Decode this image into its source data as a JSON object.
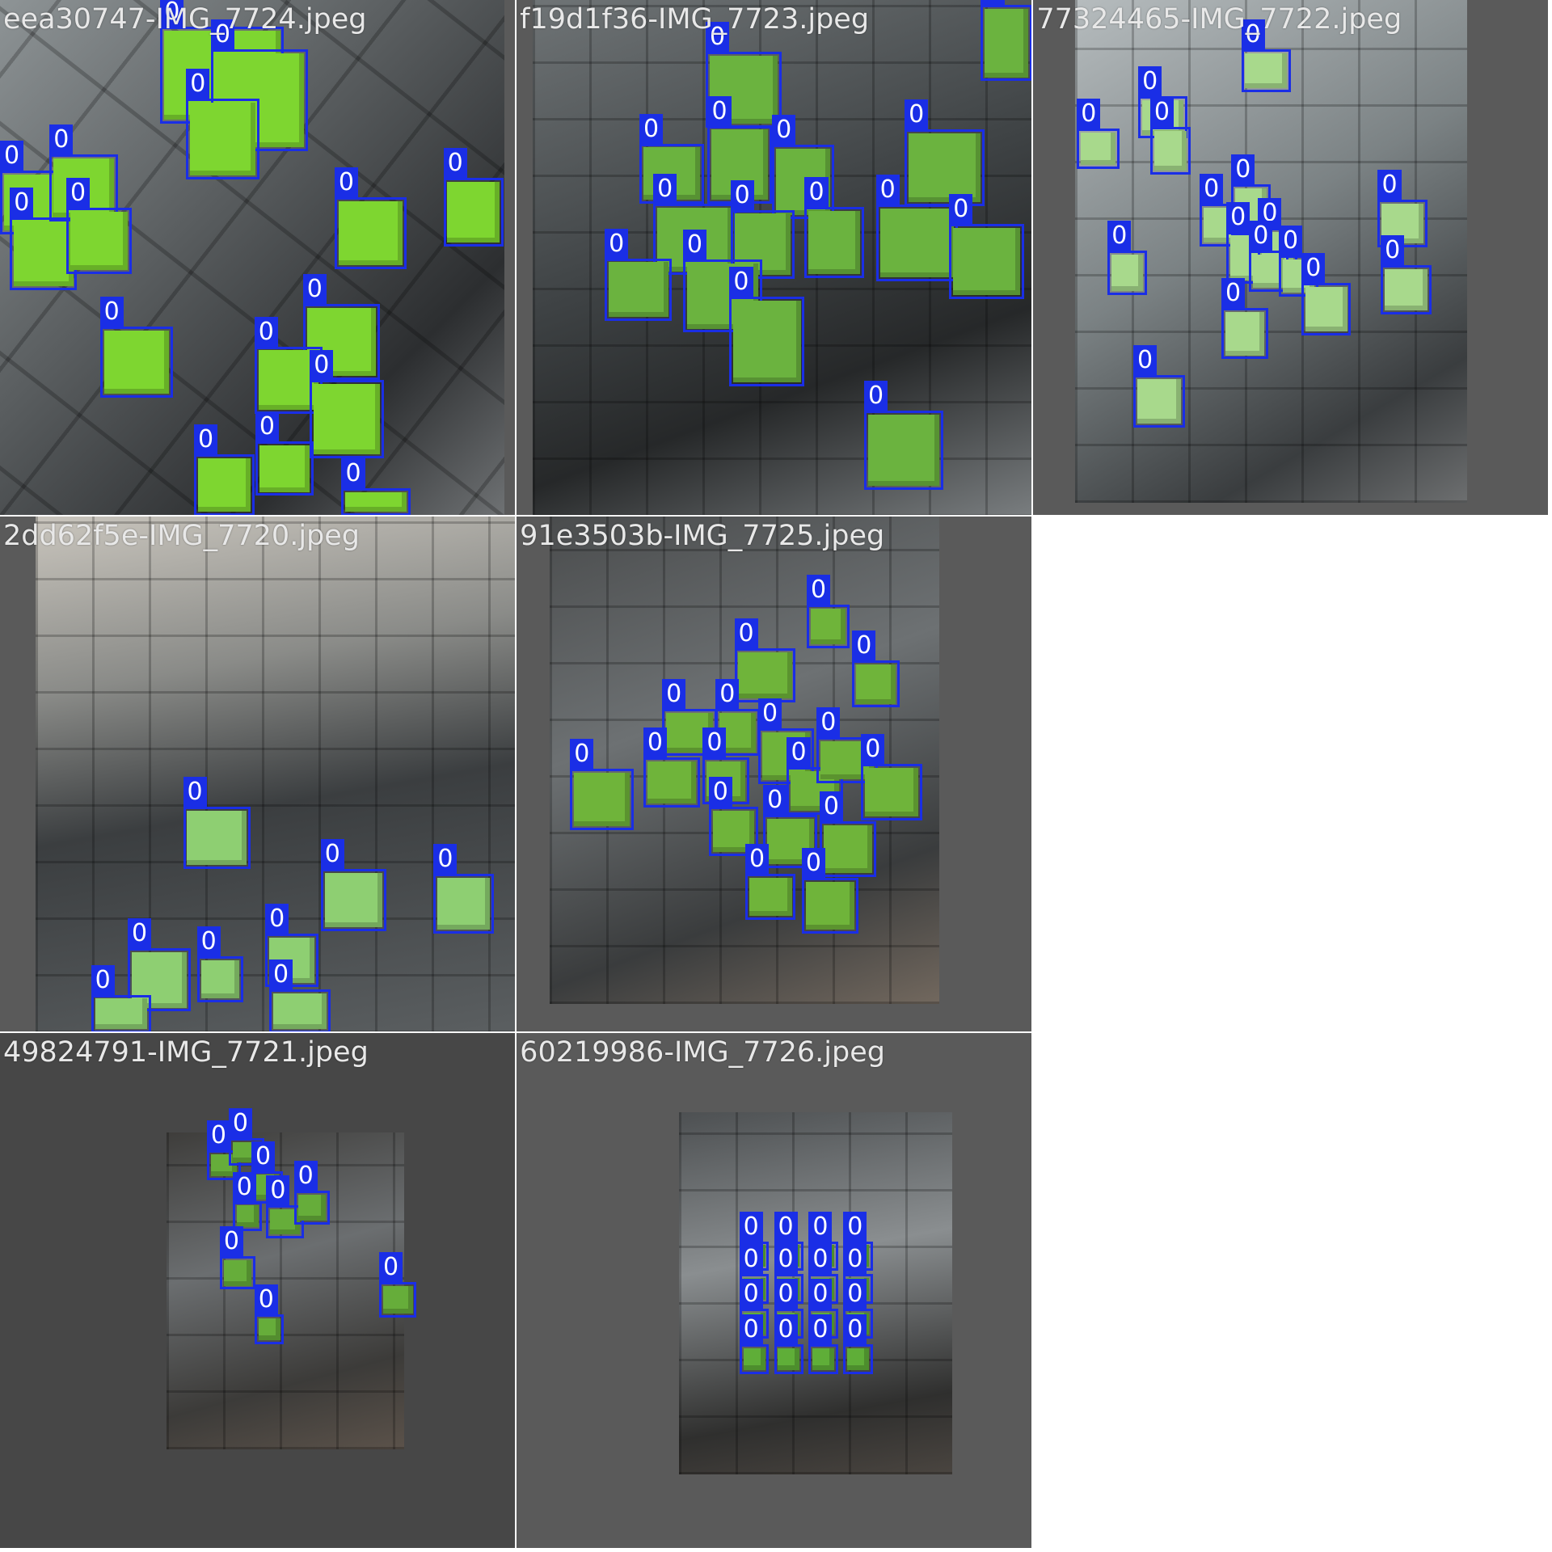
{
  "grid": {
    "tiles": [
      {
        "name": "eea30747-IMG_7724.jpeg"
      },
      {
        "name": "f19d1f36-IMG_7723.jpeg"
      },
      {
        "name": "77324465-IMG_7722.jpeg"
      },
      {
        "name": "2dd62f5e-IMG_7720.jpeg"
      },
      {
        "name": "91e3503b-IMG_7725.jpeg"
      },
      {
        "name": "49824791-IMG_7721.jpeg"
      },
      {
        "name": "60219986-IMG_7726.jpeg"
      }
    ],
    "detection_label": "0",
    "colors": {
      "box": "#1a2ee6",
      "label_text": "#ffffff",
      "tile_name": "#e8e8e8",
      "cube_bright": "#7ed630",
      "cube_mid": "#6bb33f",
      "cube_pale": "#a8d98c"
    }
  }
}
